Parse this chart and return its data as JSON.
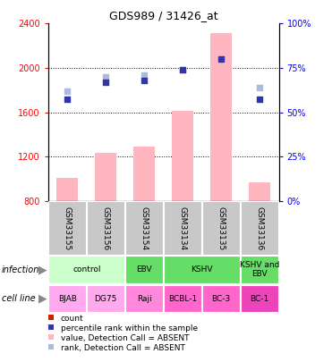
{
  "title": "GDS989 / 31426_at",
  "samples": [
    "GSM33155",
    "GSM33156",
    "GSM33154",
    "GSM33134",
    "GSM33135",
    "GSM33136"
  ],
  "bar_values": [
    1010,
    1230,
    1290,
    1610,
    2310,
    970
  ],
  "dot_values": [
    1720,
    1870,
    1890,
    1980,
    2080,
    1720
  ],
  "rank_values": [
    62,
    70,
    71,
    74,
    80,
    64
  ],
  "ylim_left": [
    800,
    2400
  ],
  "ylim_right": [
    0,
    100
  ],
  "yticks_left": [
    800,
    1200,
    1600,
    2000,
    2400
  ],
  "yticks_right": [
    0,
    25,
    50,
    75,
    100
  ],
  "bar_color": "#FFB6C1",
  "dot_color": "#3333AA",
  "rank_dot_color": "#AABBDD",
  "infection_groups": [
    {
      "label": "control",
      "start": 0,
      "end": 2,
      "color": "#CCFFCC"
    },
    {
      "label": "EBV",
      "start": 2,
      "end": 3,
      "color": "#66DD66"
    },
    {
      "label": "KSHV",
      "start": 3,
      "end": 5,
      "color": "#66DD66"
    },
    {
      "label": "KSHV and\nEBV",
      "start": 5,
      "end": 6,
      "color": "#66DD66"
    }
  ],
  "cell_line_labels": [
    "BJAB",
    "DG75",
    "Raji",
    "BCBL-1",
    "BC-3",
    "BC-1"
  ],
  "cell_line_colors": [
    "#FFAAEE",
    "#FFAAEE",
    "#FF88DD",
    "#FF66CC",
    "#FF66CC",
    "#EE44BB"
  ],
  "sample_box_color": "#C8C8C8",
  "legend_items": [
    {
      "color": "#CC2200",
      "label": "count"
    },
    {
      "color": "#3333AA",
      "label": "percentile rank within the sample"
    },
    {
      "color": "#FFB6C1",
      "label": "value, Detection Call = ABSENT"
    },
    {
      "color": "#AABBDD",
      "label": "rank, Detection Call = ABSENT"
    }
  ],
  "fig_width": 3.71,
  "fig_height": 4.05,
  "dpi": 100
}
